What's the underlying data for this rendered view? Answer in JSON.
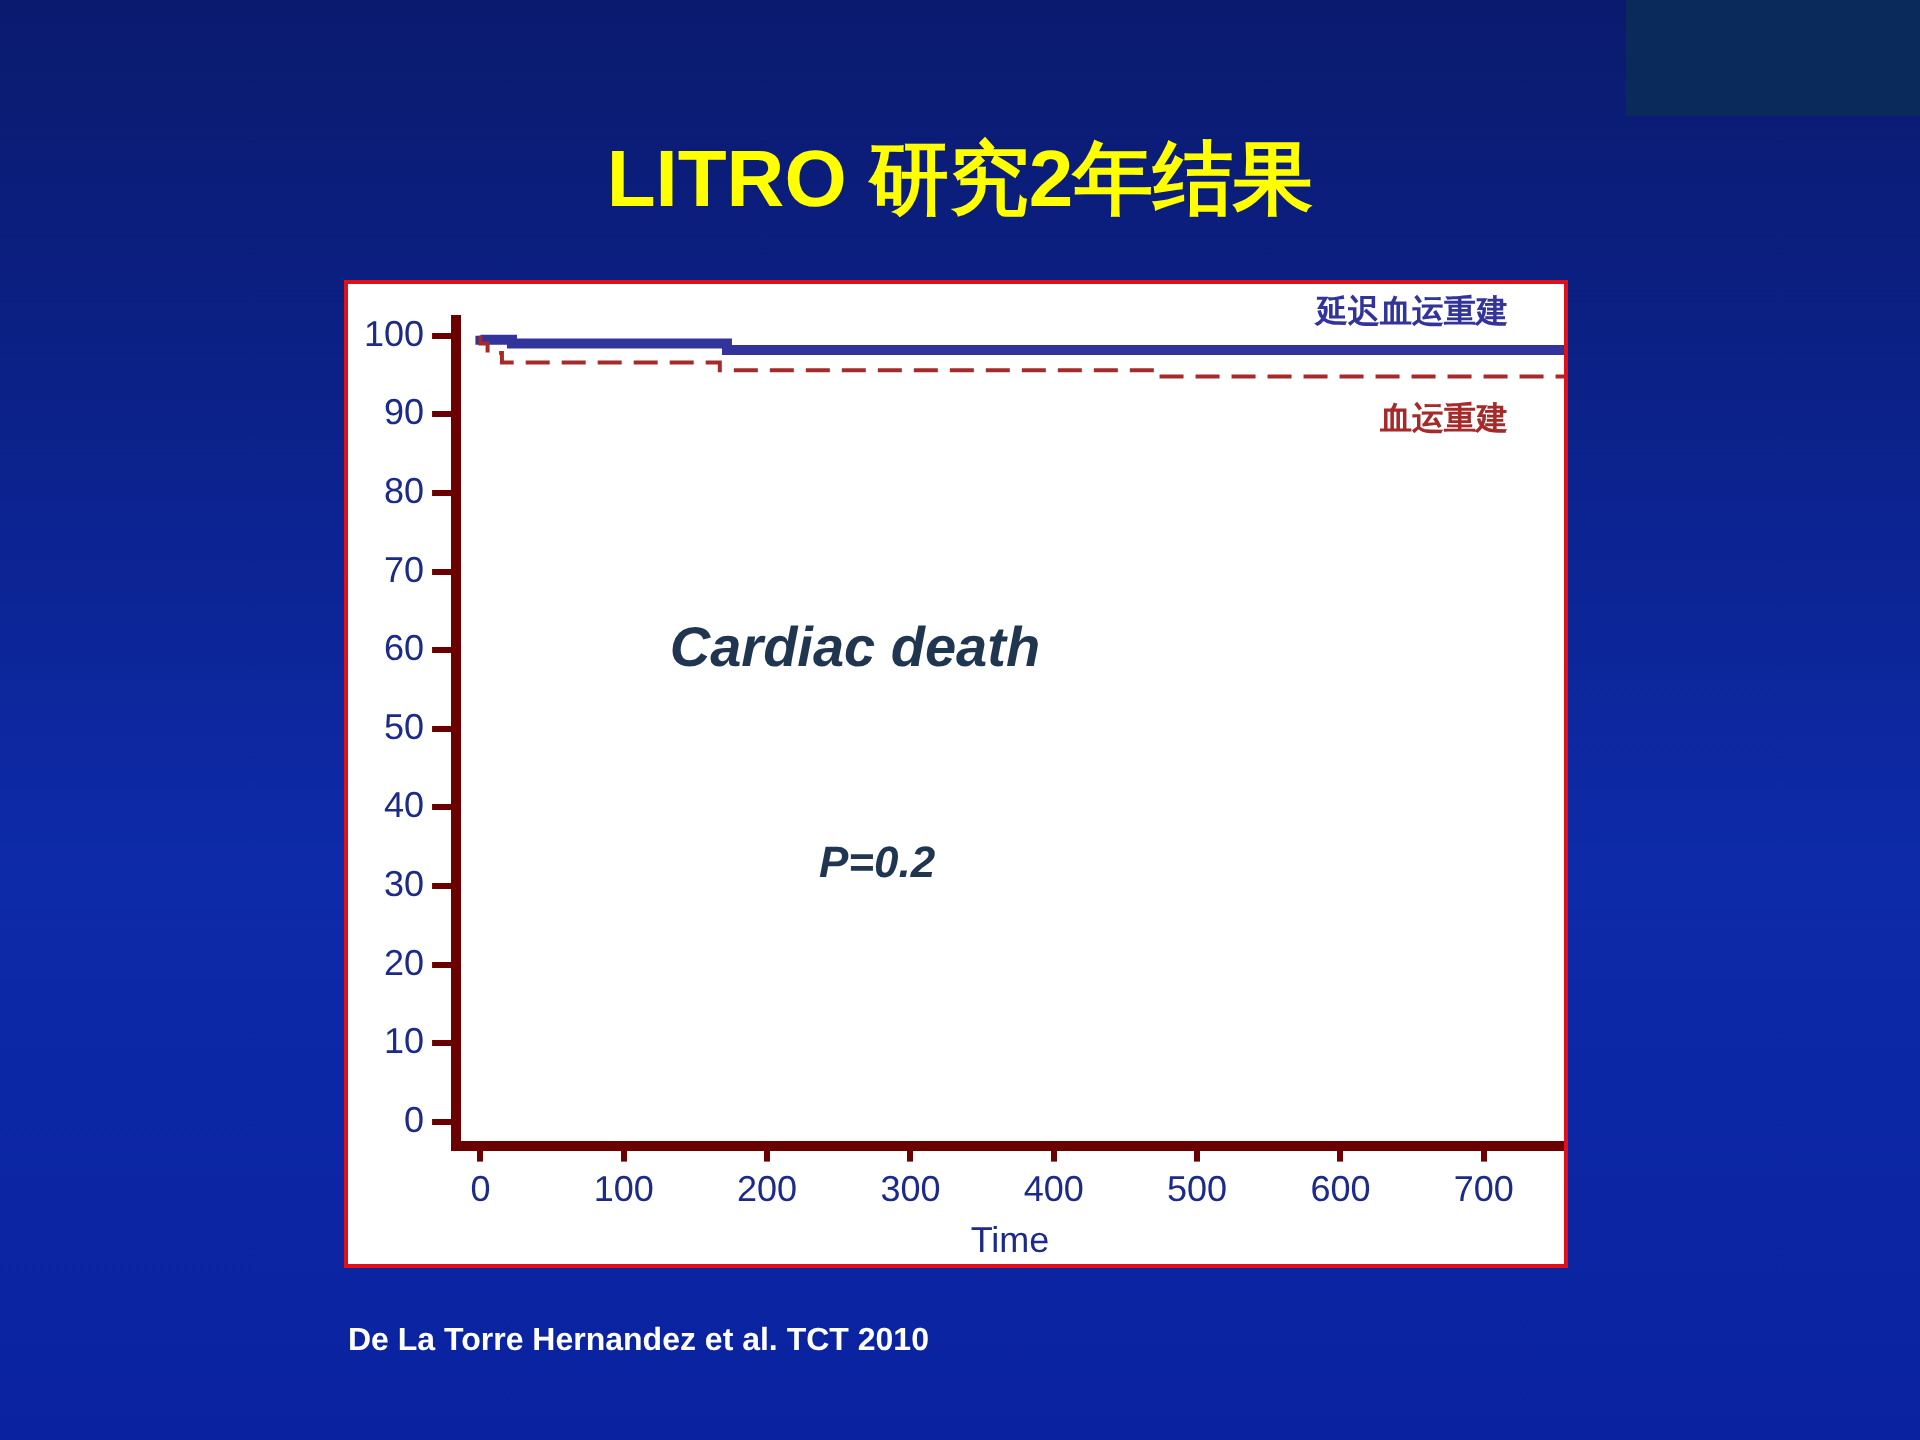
{
  "chart_data": {
    "type": "step",
    "title": "LITRO 研究2年结果",
    "xlabel": "Time",
    "xlim": [
      -17,
      756
    ],
    "xticks": [
      0,
      100,
      200,
      300,
      400,
      500,
      600,
      700
    ],
    "ylim": [
      -3,
      102
    ],
    "yticks": [
      0,
      10,
      20,
      30,
      40,
      50,
      60,
      70,
      80,
      90,
      100
    ],
    "legend": false,
    "marker": "none",
    "series": [
      {
        "name": "延迟血运重建",
        "color": "#33349b",
        "line_style": "solid",
        "x": [
          0,
          22,
          172,
          374,
          756
        ],
        "values": [
          100,
          99.5,
          99,
          98.2,
          98.2
        ]
      },
      {
        "name": "血运重建",
        "color": "#a52a2a",
        "line_style": "dashed",
        "x": [
          0,
          5,
          15,
          167,
          472,
          520,
          756
        ],
        "values": [
          100,
          99,
          97.8,
          96.6,
          95.6,
          94.8,
          94.8
        ]
      }
    ],
    "annotations": [
      "Cardiac death",
      "P=0.2",
      "De La Torre Hernandez et al.  TCT 2010"
    ]
  }
}
